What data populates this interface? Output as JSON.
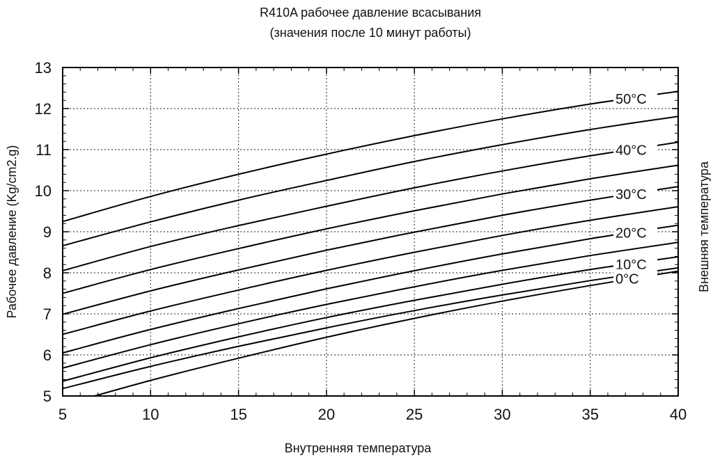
{
  "chart_data": {
    "type": "line",
    "title": "R410A рабочее давление всасывания",
    "subtitle": "(значения после 10 минут работы)",
    "xlabel": "Внутренняя температура",
    "ylabel": "Рабочее давление (Kg/cm2.g)",
    "right_label": "Внешняя температура",
    "xlim": [
      5,
      40
    ],
    "ylim": [
      5,
      13
    ],
    "xticks": [
      "5",
      "10",
      "15",
      "20",
      "25",
      "30",
      "35",
      "40"
    ],
    "yticks": [
      "5",
      "6",
      "7",
      "8",
      "9",
      "10",
      "11",
      "12",
      "13"
    ],
    "grid": true,
    "x": [
      5,
      10,
      15,
      20,
      25,
      30,
      35,
      40
    ],
    "series": [
      {
        "name": "50°C",
        "values": [
          9.25,
          9.86,
          10.4,
          10.89,
          11.34,
          11.75,
          12.11,
          12.42
        ]
      },
      {
        "values": [
          8.66,
          9.24,
          9.77,
          10.25,
          10.71,
          11.12,
          11.49,
          11.81
        ]
      },
      {
        "name": "40°C",
        "values": [
          8.05,
          8.64,
          9.15,
          9.62,
          10.07,
          10.48,
          10.85,
          11.18
        ]
      },
      {
        "values": [
          7.5,
          8.08,
          8.59,
          9.07,
          9.51,
          9.92,
          10.29,
          10.62
        ]
      },
      {
        "name": "30°C",
        "values": [
          6.99,
          7.56,
          8.07,
          8.55,
          8.99,
          9.4,
          9.77,
          10.1
        ]
      },
      {
        "values": [
          6.5,
          7.07,
          7.58,
          8.06,
          8.5,
          8.91,
          9.28,
          9.61
        ]
      },
      {
        "name": "20°C",
        "values": [
          6.05,
          6.62,
          7.13,
          7.61,
          8.05,
          8.46,
          8.83,
          9.16
        ]
      },
      {
        "values": [
          5.68,
          6.25,
          6.76,
          7.23,
          7.66,
          8.06,
          8.42,
          8.74
        ]
      },
      {
        "name": "10°C",
        "values": [
          5.36,
          5.93,
          6.44,
          6.91,
          7.33,
          7.72,
          8.08,
          8.39
        ]
      },
      {
        "values": [
          5.18,
          5.72,
          6.21,
          6.66,
          7.08,
          7.46,
          7.81,
          8.12
        ]
      },
      {
        "name": "0°C",
        "values": [
          4.78,
          5.38,
          5.92,
          6.43,
          6.89,
          7.31,
          7.69,
          8.04
        ]
      }
    ]
  }
}
